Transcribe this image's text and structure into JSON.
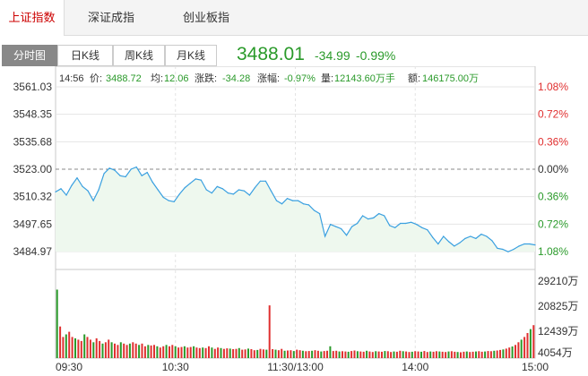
{
  "top_tabs": [
    "上证指数",
    "深证成指",
    "创业板指"
  ],
  "period_tabs": [
    "分时图",
    "日K线",
    "周K线",
    "月K线"
  ],
  "quote": {
    "price": "3488.01",
    "change": "-34.99",
    "change_pct": "-0.99%"
  },
  "info_line": {
    "time": "14:56",
    "price_label": "价:",
    "price": "3488.72",
    "avg_label": "均:",
    "avg": "12.06",
    "chg_label": "涨跌:",
    "chg": "-34.28",
    "pct_label": "涨幅:",
    "pct": "-0.97%",
    "vol_label": "量:",
    "vol": "12143.60万手",
    "amt_label": "额:",
    "amt": "146175.00万"
  },
  "colors": {
    "up": "#e03030",
    "down": "#2a9a2a",
    "line": "#3aa0e0",
    "ref": "#888888"
  },
  "chart_data": {
    "type": "line",
    "title": "",
    "x_ticks": [
      "09:30",
      "10:30",
      "11:30/13:00",
      "14:00",
      "15:00"
    ],
    "y_ticks": [
      "3561.03",
      "3548.35",
      "3535.68",
      "3523.00",
      "3510.32",
      "3497.65",
      "3484.97"
    ],
    "pct_ticks": [
      "1.08%",
      "0.72%",
      "0.36%",
      "0.00%",
      "0.36%",
      "0.72%",
      "1.08%"
    ],
    "ylim": [
      3484.97,
      3561.03
    ],
    "prev_close": 3523.0,
    "series": [
      {
        "values": [
          3512.5,
          3514.0,
          3511.0,
          3515.5,
          3519.0,
          3515.0,
          3513.0,
          3508.5,
          3513.5,
          3521.0,
          3523.5,
          3522.5,
          3520.0,
          3519.5,
          3523.0,
          3524.0,
          3520.0,
          3521.5,
          3517.0,
          3513.5,
          3510.0,
          3508.5,
          3508.0,
          3511.5,
          3514.5,
          3516.5,
          3518.5,
          3518.0,
          3513.5,
          3512.0,
          3515.0,
          3514.0,
          3512.0,
          3511.5,
          3513.5,
          3513.0,
          3511.0,
          3514.5,
          3517.5,
          3517.5,
          3513.0,
          3508.5,
          3507.0,
          3509.5,
          3508.5,
          3508.5,
          3507.0,
          3506.5,
          3504.0,
          3502.5,
          3492.0,
          3497.5,
          3496.5,
          3495.5,
          3492.5,
          3496.5,
          3498.0,
          3501.5,
          3500.0,
          3500.5,
          3502.5,
          3501.5,
          3497.0,
          3496.0,
          3498.0,
          3498.0,
          3498.5,
          3497.5,
          3496.0,
          3495.0,
          3491.5,
          3488.5,
          3492.0,
          3489.5,
          3487.5,
          3489.0,
          3491.0,
          3492.0,
          3491.0,
          3493.0,
          3492.0,
          3490.0,
          3486.5,
          3486.0,
          3484.9,
          3486.0,
          3487.5,
          3488.5,
          3488.5,
          3488.01
        ]
      }
    ],
    "volume": {
      "y_ticks": [
        "29210万",
        "20825万",
        "12439万",
        "4054万"
      ],
      "values": [
        26000,
        12000,
        8000,
        9000,
        10000,
        8000,
        7500,
        7000,
        6500,
        9000,
        8000,
        7000,
        6000,
        7500,
        6500,
        5500,
        6000,
        7000,
        6000,
        5500,
        5000,
        6000,
        5500,
        5000,
        5500,
        6000,
        5500,
        5000,
        5500,
        4500,
        5000,
        4800,
        5000,
        4500,
        4000,
        4500,
        5000,
        4500,
        5000,
        4500,
        4000,
        4200,
        4500,
        4000,
        4200,
        4500,
        4000,
        3800,
        4000,
        3800,
        4500,
        4000,
        3500,
        4000,
        3800,
        3500,
        3700,
        3600,
        3400,
        3500,
        3800,
        3200,
        3300,
        3600,
        3400,
        3000,
        3100,
        3500,
        3300,
        3200,
        20000,
        3400,
        3200,
        3000,
        3500,
        2800,
        2900,
        3000,
        2700,
        3200,
        3000,
        2800,
        2600,
        2700,
        2800,
        3000,
        2800,
        2500,
        2700,
        2800,
        4500,
        2700,
        2800,
        2500,
        2600,
        2500,
        2400,
        2700,
        2900,
        2600,
        2500,
        2400,
        2800,
        2500,
        2300,
        2600,
        2500,
        2400,
        2700,
        2600,
        2300,
        2500,
        2400,
        2800,
        2600,
        2500,
        2300,
        2400,
        2600,
        2500,
        2400,
        2700,
        2300,
        2500,
        2400,
        2600,
        2500,
        2400,
        2300,
        2500,
        2600,
        2400,
        2300,
        2200,
        2400,
        2500,
        2300,
        2400,
        2500,
        2600,
        2400,
        2500,
        2700,
        2600,
        2800,
        2900,
        3100,
        3300,
        3600,
        4000,
        4400,
        5000,
        6000,
        7000,
        8000,
        9500,
        11000,
        12500
      ]
    }
  }
}
